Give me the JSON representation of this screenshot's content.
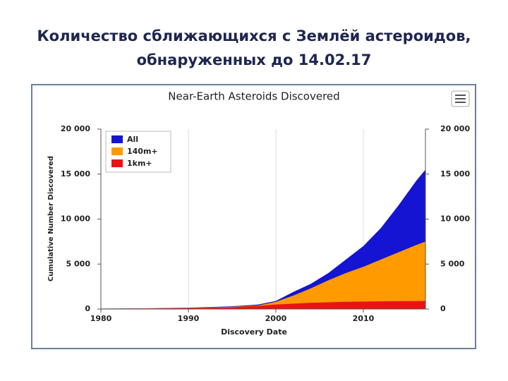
{
  "slide": {
    "title_lines": [
      "Количество сближающихся с Землёй астероидов,",
      "обнаруженных до 14.02.17"
    ]
  },
  "chart_data": {
    "type": "area",
    "title": "Near-Earth Asteroids Discovered",
    "x_label": "Discovery Date",
    "y_label": "Cumulative Number Discovered",
    "x": [
      1980,
      1985,
      1990,
      1995,
      1998,
      2000,
      2002,
      2004,
      2006,
      2008,
      2010,
      2012,
      2014,
      2016,
      2017.1
    ],
    "series": [
      {
        "name": "All",
        "color": "#1414d2",
        "values": [
          50,
          80,
          150,
          300,
          500,
          900,
          1900,
          2800,
          4000,
          5500,
          7000,
          9000,
          11500,
          14200,
          15500
        ]
      },
      {
        "name": "140m+",
        "color": "#ff9a00",
        "values": [
          40,
          70,
          120,
          250,
          400,
          800,
          1500,
          2300,
          3200,
          4000,
          4700,
          5500,
          6300,
          7100,
          7500
        ]
      },
      {
        "name": "1km+",
        "color": "#ee1111",
        "values": [
          30,
          60,
          100,
          200,
          350,
          500,
          600,
          700,
          750,
          800,
          830,
          850,
          870,
          880,
          890
        ]
      }
    ],
    "xlim": [
      1980,
      2017.1
    ],
    "xticks": [
      1980,
      1990,
      2000,
      2010
    ],
    "ylim": [
      0,
      20000
    ],
    "yticks": [
      0,
      {
        "value": 5000,
        "label": "5 000"
      },
      {
        "value": 10000,
        "label": "10 000"
      },
      {
        "value": 15000,
        "label": "15 000"
      },
      {
        "value": 20000,
        "label": "20 000"
      }
    ],
    "y2lim": [
      0,
      20000
    ],
    "y2ticks": [
      0,
      {
        "value": 5000,
        "label": "5 000"
      },
      {
        "value": 10000,
        "label": "10 000"
      },
      {
        "value": 15000,
        "label": "15 000"
      },
      {
        "value": 20000,
        "label": "20 000"
      }
    ],
    "grid": true,
    "legend": "top-left"
  }
}
